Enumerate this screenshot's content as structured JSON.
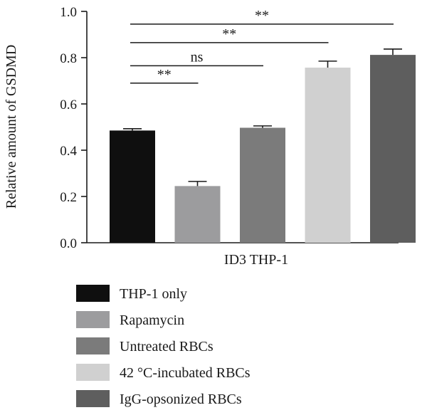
{
  "chart_data": {
    "type": "bar",
    "ylabel": "Relative amount of GSDMD",
    "xlabel": "ID3 THP-1",
    "ylim": [
      0,
      1.0
    ],
    "y_ticks": [
      0.0,
      0.2,
      0.4,
      0.6,
      0.8,
      1.0
    ],
    "y_tick_labels": [
      "0.0",
      "0.2",
      "0.4",
      "0.6",
      "0.8",
      "1.0"
    ],
    "categories": [
      "THP-1 only",
      "Rapamycin",
      "Untreated RBCs",
      "42 °C-incubated RBCs",
      "IgG-opsonized RBCs"
    ],
    "values": [
      0.485,
      0.245,
      0.497,
      0.757,
      0.812
    ],
    "errors": [
      0.008,
      0.02,
      0.008,
      0.028,
      0.025
    ],
    "colors": [
      "#0f0f0f",
      "#9c9c9e",
      "#7b7b7b",
      "#d0d0d0",
      "#5e5e5e"
    ],
    "significance": [
      {
        "from": 0,
        "to": 1,
        "label": "**",
        "level": 0.69
      },
      {
        "from": 0,
        "to": 2,
        "label": "ns",
        "level": 0.765
      },
      {
        "from": 0,
        "to": 3,
        "label": "**",
        "level": 0.865
      },
      {
        "from": 0,
        "to": 4,
        "label": "**",
        "level": 0.945
      }
    ],
    "legend_position": "bottom-left"
  }
}
